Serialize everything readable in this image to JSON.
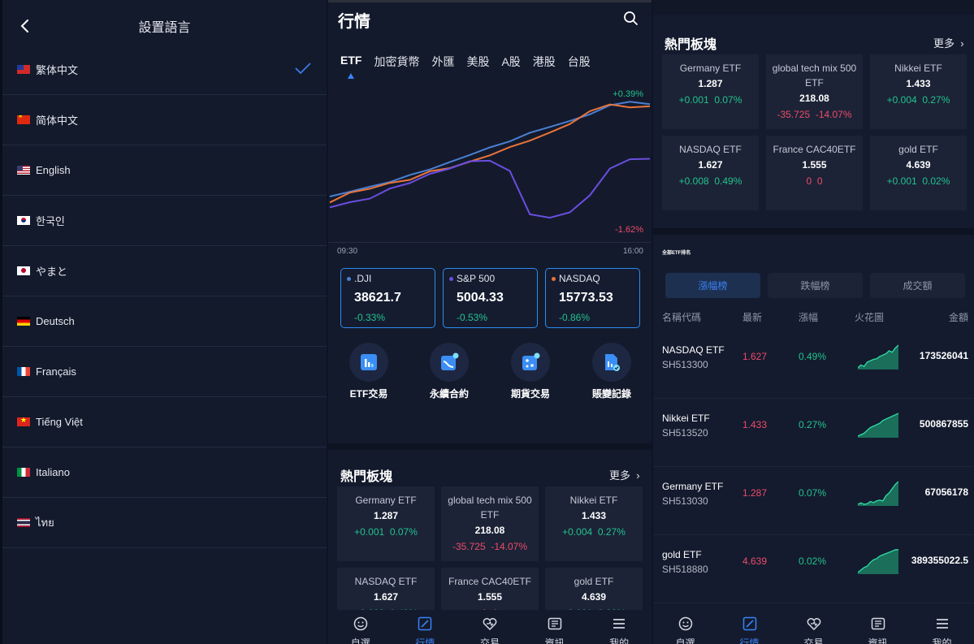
{
  "language_screen": {
    "title": "設置語言",
    "languages": [
      {
        "label": "繁体中文",
        "flag": "flag-taiwan-icon",
        "selected": true
      },
      {
        "label": "简体中文",
        "flag": "flag-china-icon",
        "selected": false
      },
      {
        "label": "English",
        "flag": "flag-usa-icon",
        "selected": false
      },
      {
        "label": "한국인",
        "flag": "flag-korea-icon",
        "selected": false
      },
      {
        "label": "やまと",
        "flag": "flag-japan-icon",
        "selected": false
      },
      {
        "label": "Deutsch",
        "flag": "flag-germany-icon",
        "selected": false
      },
      {
        "label": "Français",
        "flag": "flag-france-icon",
        "selected": false
      },
      {
        "label": "Tiếng Việt",
        "flag": "flag-vietnam-icon",
        "selected": false
      },
      {
        "label": "Italiano",
        "flag": "flag-italy-icon",
        "selected": false
      },
      {
        "label": "ไทย",
        "flag": "flag-thailand-icon",
        "selected": false
      }
    ],
    "accent_color": "#3b82f6"
  },
  "market_screen": {
    "title": "行情",
    "tabs": [
      "ETF",
      "加密貨幣",
      "外匯",
      "美股",
      "A股",
      "港股",
      "台股"
    ],
    "active_tab": "ETF",
    "chart": {
      "high_label": "+0.39%",
      "low_label": "-1.62%",
      "time_start": "09:30",
      "time_end": "16:00"
    },
    "chart_data": {
      "type": "line",
      "series": [
        {
          "values": [
            -0.55,
            -0.5,
            -0.45,
            -0.4,
            -0.33,
            -0.27,
            -0.2,
            -0.12,
            -0.05,
            0.02,
            0.1,
            0.17,
            0.22,
            0.3,
            0.38,
            0.43,
            0.39
          ]
        },
        {
          "values": [
            -0.6,
            -0.52,
            -0.46,
            -0.42,
            -0.37,
            -0.3,
            -0.25,
            -0.2,
            -0.12,
            -0.05,
            0.03,
            0.1,
            0.2,
            0.32,
            0.4,
            0.36,
            0.38
          ]
        },
        {
          "values": [
            -0.65,
            -0.62,
            -0.56,
            -0.48,
            -0.4,
            -0.33,
            -0.25,
            -0.2,
            -0.17,
            -0.3,
            -0.72,
            -0.78,
            -0.7,
            -0.55,
            -0.25,
            -0.18,
            -0.15
          ]
        }
      ],
      "colors": [
        "#4a7fd1",
        "#e8743b",
        "#6a4ee0"
      ]
    },
    "indices": [
      {
        "name": ".DJI",
        "value": "38621.7",
        "change": "-0.33%",
        "dot_color": "#4a7fd1"
      },
      {
        "name": "S&P 500",
        "value": "5004.33",
        "change": "-0.53%",
        "dot_color": "#6a4ee0"
      },
      {
        "name": "NASDAQ",
        "value": "15773.53",
        "change": "-0.86%",
        "dot_color": "#e8743b"
      }
    ],
    "actions": [
      {
        "label": "ETF交易",
        "icon": "bar-chart-icon"
      },
      {
        "label": "永續合約",
        "icon": "trend-chart-icon"
      },
      {
        "label": "期貨交易",
        "icon": "dice-icon"
      },
      {
        "label": "賬變記錄",
        "icon": "document-check-icon"
      }
    ],
    "hot_title": "熱門板塊",
    "more_label": "更多",
    "hot": [
      {
        "name": "Germany ETF",
        "value": "1.287",
        "change": "+0.001",
        "pct": "0.07%",
        "dir": "up"
      },
      {
        "name": "global tech mix 500 ETF",
        "value": "218.08",
        "change": "-35.725",
        "pct": "-14.07%",
        "dir": "down"
      },
      {
        "name": "Nikkei ETF",
        "value": "1.433",
        "change": "+0.004",
        "pct": "0.27%",
        "dir": "up"
      },
      {
        "name": "NASDAQ ETF",
        "value": "1.627",
        "change": "+0.008",
        "pct": "0.49%",
        "dir": "up"
      },
      {
        "name": "France CAC40ETF",
        "value": "1.555",
        "change": "0",
        "pct": "0",
        "dir": "down"
      },
      {
        "name": "gold ETF",
        "value": "4.639",
        "change": "+0.001",
        "pct": "0.02%",
        "dir": "up"
      }
    ],
    "nav": [
      {
        "label": "自選",
        "icon": "smiley-icon"
      },
      {
        "label": "行情",
        "icon": "market-chart-icon"
      },
      {
        "label": "交易",
        "icon": "heart-trade-icon"
      },
      {
        "label": "資訊",
        "icon": "news-icon"
      },
      {
        "label": "我的",
        "icon": "menu-icon"
      }
    ],
    "active_nav": "行情"
  },
  "ranking_screen": {
    "rank_title": "全部ETF排名",
    "segments": [
      "漲幅榜",
      "跌幅榜",
      "成交額"
    ],
    "active_segment": "漲幅榜",
    "columns": [
      "名稱代碼",
      "最新",
      "漲幅",
      "火花圖",
      "金額"
    ],
    "rows": [
      {
        "name": "NASDAQ ETF",
        "code": "SH513300",
        "price": "1.627",
        "change": "0.49%",
        "amount": "173526041",
        "spark": [
          2,
          3,
          2.5,
          4,
          4.5,
          5,
          5.2,
          6,
          6.5,
          7,
          8,
          7.5,
          9,
          10
        ]
      },
      {
        "name": "Nikkei ETF",
        "code": "SH513520",
        "price": "1.433",
        "change": "0.27%",
        "amount": "500867855",
        "spark": [
          2,
          2.5,
          3,
          4,
          5,
          5.5,
          6,
          6.5,
          7.5,
          8,
          8.5,
          9,
          9.5,
          10
        ]
      },
      {
        "name": "Germany ETF",
        "code": "SH513030",
        "price": "1.287",
        "change": "0.07%",
        "amount": "67056178",
        "spark": [
          2,
          2.5,
          2,
          2.2,
          3,
          2.6,
          3.2,
          3.5,
          3.2,
          5,
          6,
          7.5,
          9,
          10
        ]
      },
      {
        "name": "gold ETF",
        "code": "SH518880",
        "price": "4.639",
        "change": "0.02%",
        "amount": "389355022.5",
        "spark": [
          1,
          2,
          3,
          3.5,
          5,
          6,
          6.5,
          7.5,
          8,
          8.5,
          9,
          9.5,
          10,
          10
        ]
      }
    ],
    "positive_color": "#22c38e",
    "negative_color": "#ef4a6a"
  }
}
